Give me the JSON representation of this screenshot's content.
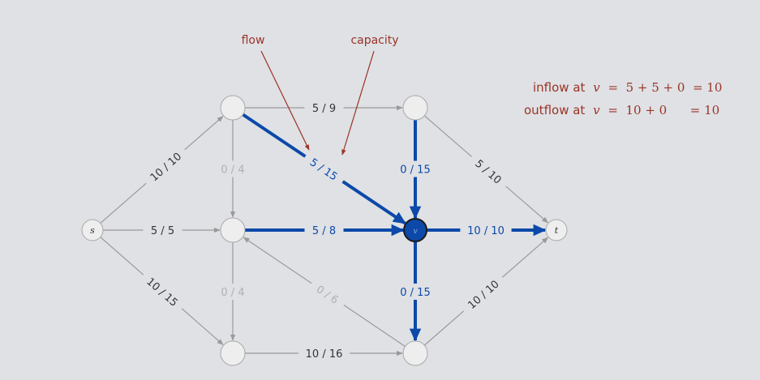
{
  "colors": {
    "background": "#dfe1e5",
    "gray_edge": "#9a9a9a",
    "gray_label": "#333333",
    "faint_label": "#b0b0b0",
    "flow_blue": "#0c49a8",
    "annotation_red": "#9b3325",
    "node_fill": "#eeeeee",
    "node_stroke": "#a8a8a8"
  },
  "nodes": [
    {
      "id": "s",
      "label": "s"
    },
    {
      "id": "a",
      "label": ""
    },
    {
      "id": "b",
      "label": ""
    },
    {
      "id": "c",
      "label": ""
    },
    {
      "id": "d",
      "label": ""
    },
    {
      "id": "v",
      "label": "v"
    },
    {
      "id": "e",
      "label": ""
    },
    {
      "id": "t",
      "label": "t"
    }
  ],
  "edges": [
    {
      "from": "s",
      "to": "a",
      "flow": 10,
      "capacity": 10,
      "label": "10 / 10",
      "style": "gray"
    },
    {
      "from": "s",
      "to": "b",
      "flow": 5,
      "capacity": 5,
      "label": "5 / 5",
      "style": "gray"
    },
    {
      "from": "s",
      "to": "c",
      "flow": 10,
      "capacity": 15,
      "label": "10 / 15",
      "style": "gray"
    },
    {
      "from": "a",
      "to": "d",
      "flow": 5,
      "capacity": 9,
      "label": "5 / 9",
      "style": "gray"
    },
    {
      "from": "a",
      "to": "b",
      "flow": 0,
      "capacity": 4,
      "label": "0 / 4",
      "style": "faint"
    },
    {
      "from": "a",
      "to": "v",
      "flow": 5,
      "capacity": 15,
      "label": "5 / 15",
      "style": "blue"
    },
    {
      "from": "b",
      "to": "v",
      "flow": 5,
      "capacity": 8,
      "label": "5 / 8",
      "style": "blue"
    },
    {
      "from": "b",
      "to": "c",
      "flow": 0,
      "capacity": 4,
      "label": "0 / 4",
      "style": "faint"
    },
    {
      "from": "e",
      "to": "b",
      "flow": 0,
      "capacity": 6,
      "label": "0 / 6",
      "style": "faint"
    },
    {
      "from": "c",
      "to": "e",
      "flow": 10,
      "capacity": 16,
      "label": "10 / 16",
      "style": "gray"
    },
    {
      "from": "d",
      "to": "v",
      "flow": 0,
      "capacity": 15,
      "label": "0 / 15",
      "style": "blue"
    },
    {
      "from": "d",
      "to": "t",
      "flow": 5,
      "capacity": 10,
      "label": "5 / 10",
      "style": "gray"
    },
    {
      "from": "v",
      "to": "t",
      "flow": 10,
      "capacity": 10,
      "label": "10 / 10",
      "style": "blue"
    },
    {
      "from": "v",
      "to": "e",
      "flow": 0,
      "capacity": 15,
      "label": "0 / 15",
      "style": "blue"
    },
    {
      "from": "e",
      "to": "t",
      "flow": 10,
      "capacity": 10,
      "label": "10 / 10",
      "style": "gray"
    }
  ],
  "annotations": {
    "flow_label": "flow",
    "capacity_label": "capacity"
  },
  "equations": {
    "inflow_prefix": "inflow at",
    "inflow_var": "v",
    "inflow_rhs": "=  5 + 5 + 0  = 10",
    "outflow_prefix": "outflow at",
    "outflow_var": "v",
    "outflow_rhs": "=  10 + 0      = 10"
  }
}
